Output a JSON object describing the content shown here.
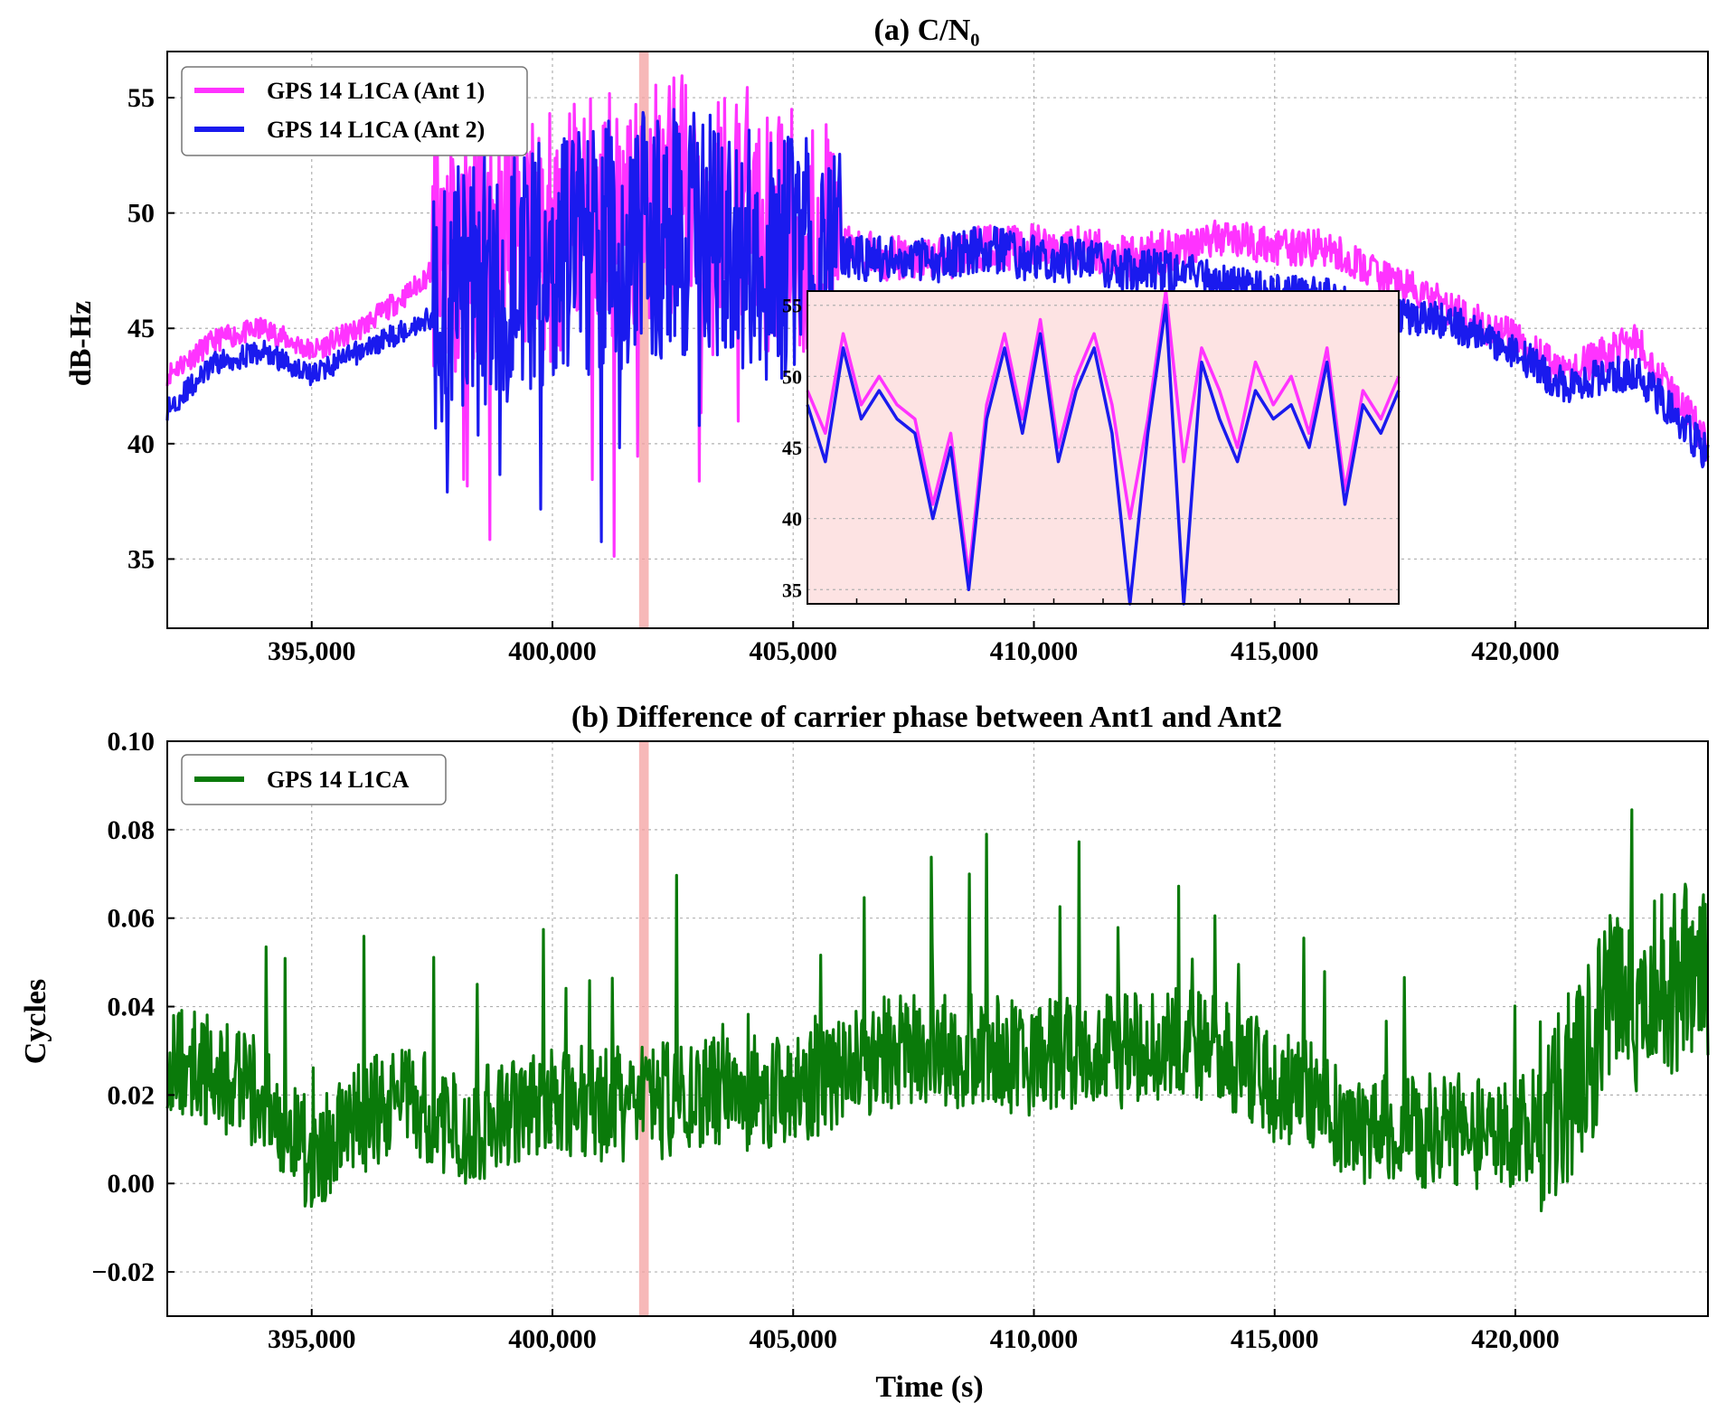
{
  "figure": {
    "panels": [
      {
        "id": "a",
        "title": "(a) C/N₀",
        "ylabel": "dB-Hz",
        "xlabel": "",
        "legend": [
          "GPS 14 L1CA (Ant 1)",
          "GPS 14 L1CA (Ant 2)"
        ],
        "yticks": [
          "35",
          "40",
          "45",
          "50",
          "55"
        ],
        "xticks": [
          "395,000",
          "400,000",
          "405,000",
          "410,000",
          "415,000",
          "420,000"
        ],
        "inset_yticks": [
          "35",
          "40",
          "45",
          "50",
          "55"
        ]
      },
      {
        "id": "b",
        "title": "(b) Difference of carrier phase between Ant1 and Ant2",
        "ylabel": "Cycles",
        "xlabel": "Time (s)",
        "legend": [
          "GPS 14 L1CA"
        ],
        "yticks": [
          "−0.02",
          "0.00",
          "0.02",
          "0.04",
          "0.06",
          "0.08",
          "0.10"
        ],
        "xticks": [
          "395,000",
          "400,000",
          "405,000",
          "410,000",
          "415,000",
          "420,000"
        ]
      }
    ]
  },
  "colors": {
    "ant1": "#ff33ff",
    "ant2": "#1a1aee",
    "diff": "#0a7a0a",
    "highlight": "#f4a0a0",
    "inset_bg": "#fde3e3"
  },
  "chart_data": [
    {
      "type": "line",
      "title": "(a) C/N₀",
      "xlabel": "",
      "ylabel": "dB-Hz",
      "xlim": [
        392000,
        424000
      ],
      "ylim": [
        32,
        57
      ],
      "grid": true,
      "legend_position": "top-left",
      "highlight_x": [
        401800,
        402000
      ],
      "series": [
        {
          "name": "GPS 14 L1CA (Ant 1)",
          "x": [
            392000,
            393000,
            394000,
            395000,
            396000,
            397000,
            397500,
            398000,
            399000,
            400000,
            401000,
            402000,
            403000,
            404000,
            405000,
            406000,
            407000,
            408000,
            409000,
            410000,
            411000,
            412000,
            413000,
            414000,
            415000,
            416000,
            417000,
            418000,
            419000,
            420000,
            421000,
            422000,
            422500,
            423000,
            424000
          ],
          "y": [
            43,
            44.5,
            45,
            44,
            45,
            46.5,
            47.5,
            48.5,
            49,
            49,
            50,
            50.5,
            50.5,
            50,
            49,
            48.5,
            48,
            48,
            48.5,
            48.5,
            48.5,
            48,
            48.5,
            49,
            48.5,
            48.5,
            47.5,
            46.5,
            45.5,
            44.5,
            43,
            44,
            44.5,
            43,
            40
          ]
        },
        {
          "name": "GPS 14 L1CA (Ant 2)",
          "x": [
            392000,
            393000,
            394000,
            395000,
            396000,
            397000,
            397500,
            398000,
            399000,
            400000,
            401000,
            402000,
            403000,
            404000,
            405000,
            406000,
            407000,
            408000,
            409000,
            410000,
            411000,
            412000,
            413000,
            414000,
            415000,
            416000,
            417000,
            418000,
            419000,
            420000,
            421000,
            422000,
            422500,
            423000,
            424000
          ],
          "y": [
            41.5,
            43.5,
            44,
            43,
            44,
            45,
            45.5,
            46.5,
            47.5,
            48,
            48.5,
            49,
            49,
            48.5,
            48,
            48,
            48,
            48,
            48.5,
            48,
            48,
            47.5,
            47.5,
            47,
            46.5,
            46.5,
            45.5,
            45.5,
            45,
            44,
            42.5,
            43,
            43,
            42,
            39.5
          ]
        }
      ],
      "inset": {
        "ylim": [
          34,
          56
        ],
        "yticks": [
          35,
          40,
          45,
          50,
          55
        ],
        "x_index": [
          0,
          3,
          6,
          9,
          12,
          15,
          18,
          21,
          24,
          27,
          30,
          33,
          36,
          39,
          42,
          45,
          48,
          51,
          54,
          57,
          60,
          63,
          66,
          69,
          72,
          75,
          78,
          81,
          84,
          87,
          90,
          93,
          96,
          99
        ],
        "ant1": [
          49,
          46,
          53,
          48,
          50,
          48,
          47,
          41,
          46,
          36,
          48,
          53,
          47,
          54,
          45,
          50,
          53,
          48,
          40,
          47,
          56,
          44,
          52,
          49,
          45,
          51,
          48,
          50,
          46,
          52,
          42,
          49,
          47,
          50
        ],
        "ant2": [
          48,
          44,
          52,
          47,
          49,
          47,
          46,
          40,
          45,
          35,
          47,
          52,
          46,
          53,
          44,
          49,
          52,
          46,
          34,
          46,
          55,
          34,
          51,
          47,
          44,
          49,
          47,
          48,
          45,
          51,
          41,
          48,
          46,
          49
        ]
      }
    },
    {
      "type": "line",
      "title": "(b) Difference of carrier phase between Ant1 and Ant2",
      "xlabel": "Time (s)",
      "ylabel": "Cycles",
      "xlim": [
        392000,
        424000
      ],
      "ylim": [
        -0.03,
        0.1
      ],
      "grid": true,
      "legend_position": "top-left",
      "highlight_x": [
        401800,
        402000
      ],
      "series": [
        {
          "name": "GPS 14 L1CA",
          "x": [
            392000,
            393000,
            394000,
            395000,
            396000,
            397000,
            398000,
            399000,
            400000,
            401000,
            402000,
            403000,
            404000,
            405000,
            406000,
            407000,
            408000,
            409000,
            410000,
            411000,
            412000,
            413000,
            414000,
            415000,
            416000,
            417000,
            418000,
            419000,
            420000,
            421000,
            422000,
            423000,
            424000
          ],
          "y": [
            0.03,
            0.025,
            0.02,
            0.005,
            0.015,
            0.02,
            0.012,
            0.015,
            0.02,
            0.018,
            0.018,
            0.02,
            0.02,
            0.022,
            0.025,
            0.03,
            0.03,
            0.03,
            0.028,
            0.03,
            0.03,
            0.032,
            0.03,
            0.022,
            0.018,
            0.012,
            0.012,
            0.012,
            0.01,
            0.02,
            0.04,
            0.045,
            0.05
          ]
        }
      ]
    }
  ]
}
